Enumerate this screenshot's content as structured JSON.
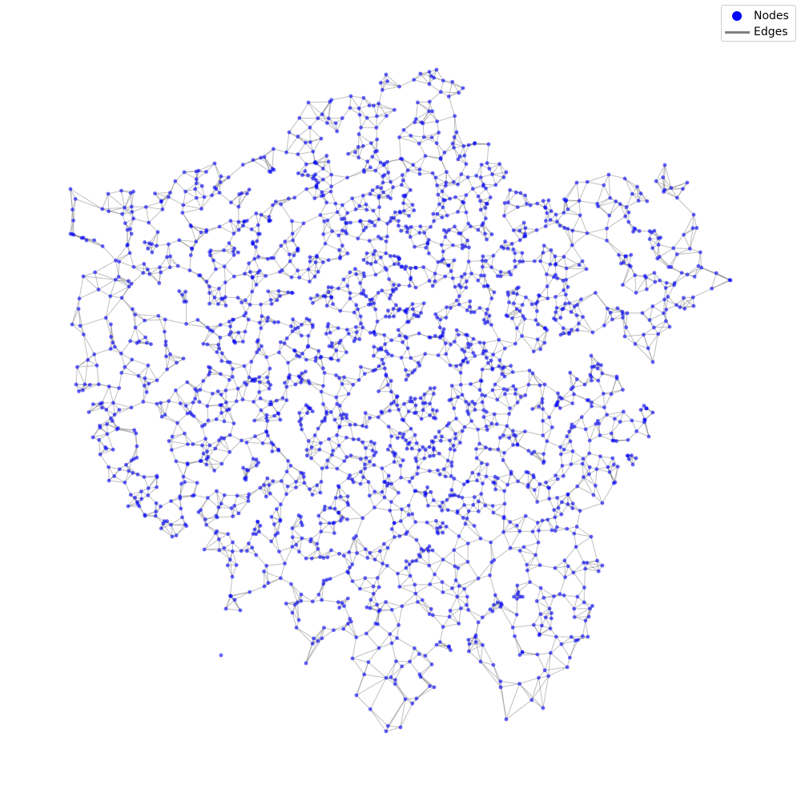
{
  "legend": {
    "nodes_label": "Nodes",
    "edges_label": "Edges"
  },
  "colors": {
    "node": "#0000ff",
    "edge": "#808080",
    "background": "#ffffff"
  },
  "graph": {
    "type": "spatial-network",
    "node_count_estimate": 2300,
    "node_opacity": 0.6,
    "edge_opacity": 0.5
  }
}
